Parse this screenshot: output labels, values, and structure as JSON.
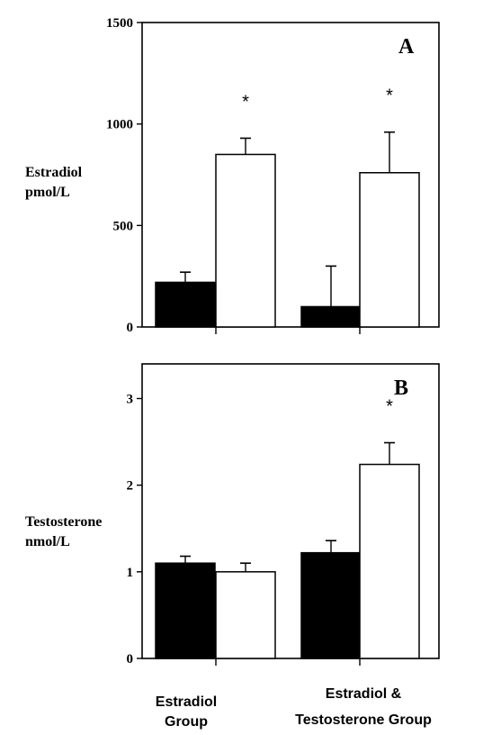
{
  "chart_data": [
    {
      "panel": "A",
      "type": "bar",
      "ylabel_lines": [
        "Estradiol",
        "pmol/L"
      ],
      "ylim": [
        0,
        1500
      ],
      "yticks": [
        "0",
        "500",
        "1000",
        "1500"
      ],
      "ytick_values": [
        0,
        500,
        1000,
        1500
      ],
      "categories": [
        "Estradiol Group",
        "Estradiol & Testosterone Group"
      ],
      "series": [
        {
          "fill": "#000000",
          "values": [
            220,
            100
          ],
          "errors": [
            50,
            200
          ],
          "stars": [
            false,
            false
          ]
        },
        {
          "fill": "#ffffff",
          "values": [
            850,
            760
          ],
          "errors": [
            80,
            200
          ],
          "stars": [
            true,
            true
          ]
        }
      ],
      "star_symbol": "*"
    },
    {
      "panel": "B",
      "type": "bar",
      "ylabel_lines": [
        "Testosterone",
        "nmol/L"
      ],
      "ylim": [
        0,
        3.4
      ],
      "yticks": [
        "0",
        "1",
        "2",
        "3"
      ],
      "ytick_values": [
        0,
        1,
        2,
        3
      ],
      "categories": [
        "Estradiol Group",
        "Estradiol & Testosterone Group"
      ],
      "series": [
        {
          "fill": "#000000",
          "values": [
            1.1,
            1.22
          ],
          "errors": [
            0.08,
            0.14
          ],
          "stars": [
            false,
            false
          ]
        },
        {
          "fill": "#ffffff",
          "values": [
            1.0,
            2.24
          ],
          "errors": [
            0.1,
            0.25
          ],
          "stars": [
            false,
            true
          ]
        }
      ],
      "star_symbol": "*"
    }
  ],
  "x_categories": [
    {
      "lines": [
        "Estradiol",
        "Group"
      ]
    },
    {
      "lines": [
        "Estradiol &",
        "Testosterone Group"
      ]
    }
  ]
}
